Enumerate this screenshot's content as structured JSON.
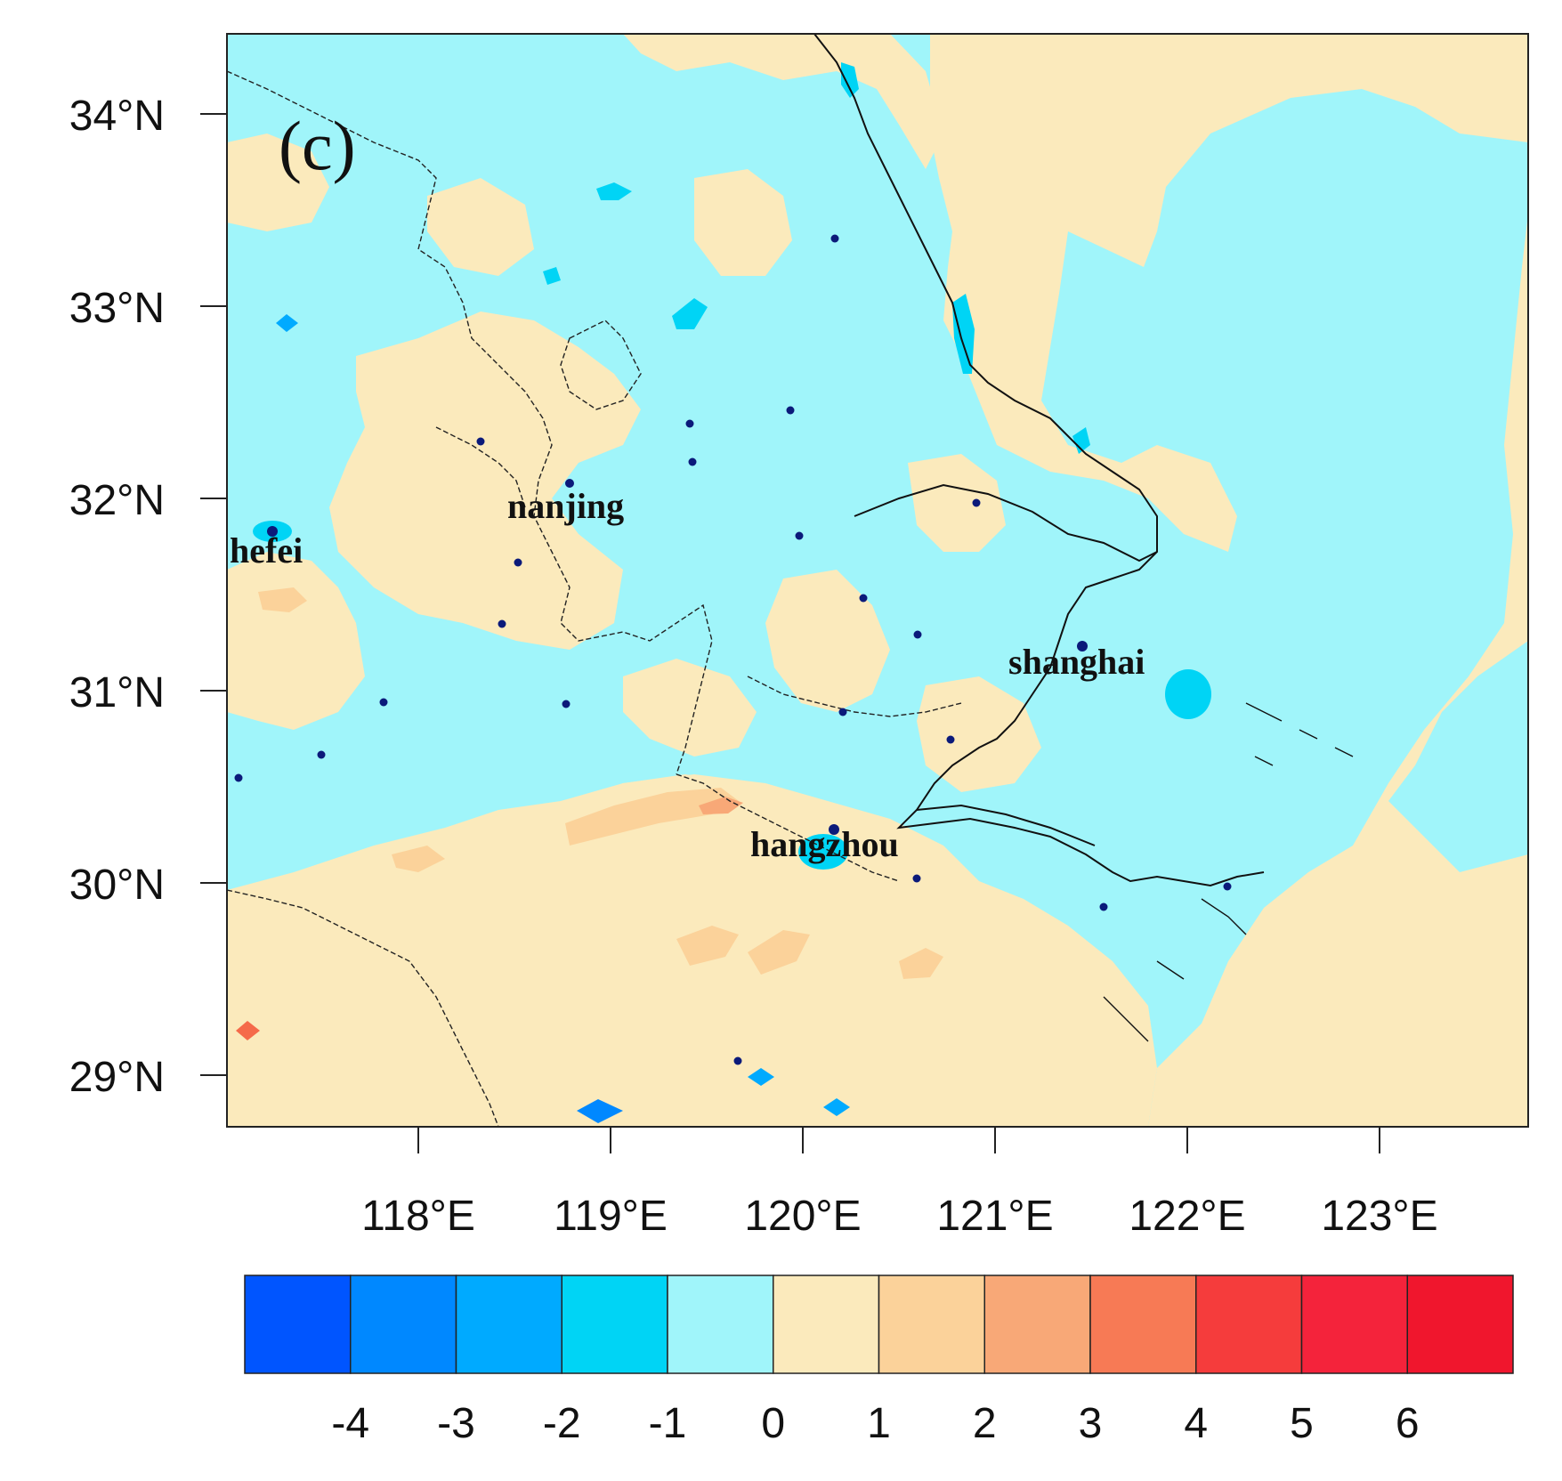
{
  "panel_label": "(c)",
  "map": {
    "colors": {
      "negative_light": "#a0f5fa",
      "positive_light": "#fbeabc",
      "positive_mid": "#fbd29a",
      "positive_strong": "#f8a877",
      "coast_line": "#111111",
      "station_dot": "#0b1a7a"
    },
    "lat_ticks": [
      "34°N",
      "33°N",
      "32°N",
      "31°N",
      "30°N",
      "29°N"
    ],
    "lon_ticks": [
      "118°E",
      "119°E",
      "120°E",
      "121°E",
      "122°E",
      "123°E"
    ],
    "cities": [
      {
        "name": "nanjing"
      },
      {
        "name": "hefei"
      },
      {
        "name": "shanghai"
      },
      {
        "name": "hangzhou"
      }
    ]
  },
  "colorbar": {
    "colors": [
      "#0055ff",
      "#0088ff",
      "#00aaff",
      "#00d4f5",
      "#a0f5fa",
      "#fbeabc",
      "#fbd29a",
      "#f8a877",
      "#f77a55",
      "#f53c3c",
      "#f4233b",
      "#f0162d"
    ],
    "labels": [
      "-4",
      "-3",
      "-2",
      "-1",
      "0",
      "1",
      "2",
      "3",
      "4",
      "5",
      "6"
    ]
  }
}
